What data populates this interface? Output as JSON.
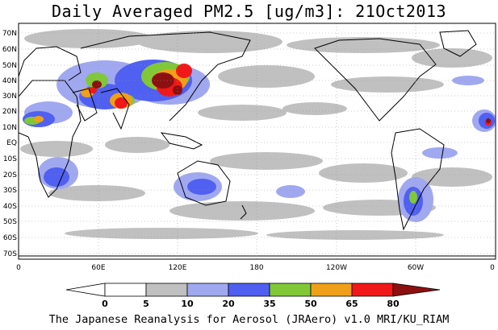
{
  "title": "Daily Averaged PM2.5 [ug/m3]: 21Oct2013",
  "credit": "The Japanese Reanalysis for Aerosol (JRAero) v1.0 MRI/KU_RIAM",
  "map": {
    "lat_labels": [
      "70N",
      "60N",
      "50N",
      "40N",
      "30N",
      "20N",
      "10N",
      "EQ",
      "10S",
      "20S",
      "30S",
      "40S",
      "50S",
      "60S",
      "70S"
    ],
    "lon_labels": [
      "0",
      "60E",
      "120E",
      "180",
      "120W",
      "60W",
      "0"
    ]
  },
  "legend": {
    "ticks": [
      "0",
      "5",
      "10",
      "20",
      "35",
      "50",
      "65",
      "80"
    ],
    "colors": [
      "#ffffff",
      "#c0c0c0",
      "#a0a8f0",
      "#5060f0",
      "#80c838",
      "#f0a018",
      "#f01818",
      "#8c1010"
    ]
  },
  "colors": {
    "land": "#ffffff",
    "ocean": "#ffffff",
    "coast": "#000000",
    "grid": "#9a9a9a"
  }
}
